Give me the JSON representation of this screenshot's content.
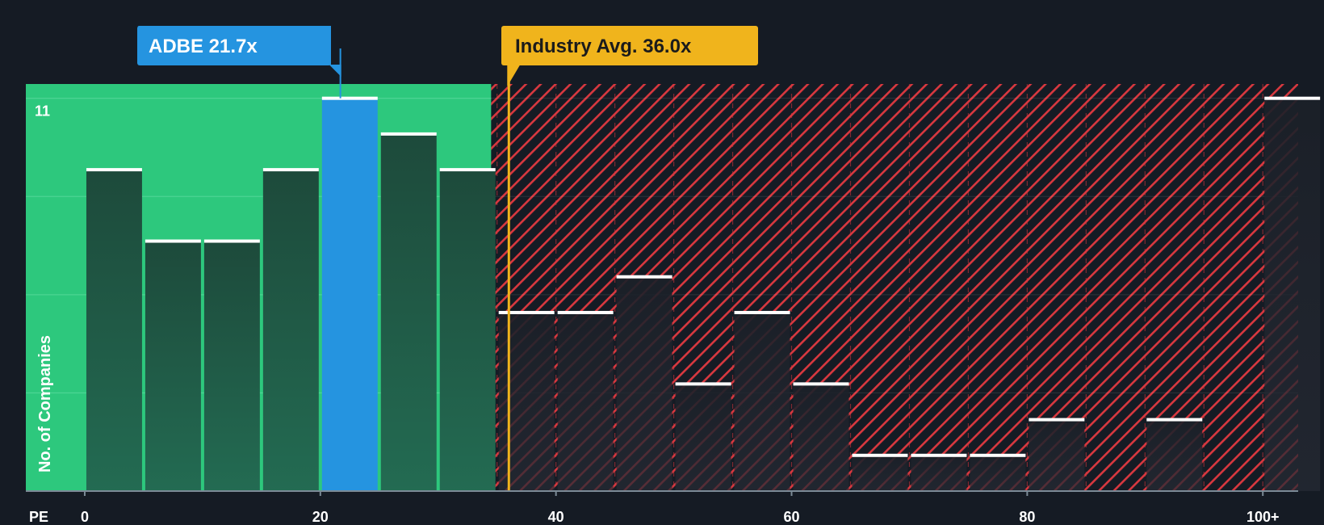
{
  "chart_data": {
    "type": "bar",
    "title": "",
    "xlabel": "PE",
    "ylabel": "No. of Companies",
    "x_axis_label": "PE",
    "xlim": [
      -5,
      103
    ],
    "ylim": [
      0,
      11.4
    ],
    "x_ticks": [
      {
        "value": 0,
        "label": "0"
      },
      {
        "value": 20,
        "label": "20"
      },
      {
        "value": 40,
        "label": "40"
      },
      {
        "value": 60,
        "label": "60"
      },
      {
        "value": 80,
        "label": "80"
      },
      {
        "value": 100,
        "label": "100+"
      }
    ],
    "y_tick_label": {
      "value": 11,
      "label": "11"
    },
    "y_gridlines": [
      2.75,
      5.5,
      8.25,
      11
    ],
    "bin_width": 5,
    "bins": [
      {
        "start": 0,
        "value": 9
      },
      {
        "start": 5,
        "value": 7
      },
      {
        "start": 10,
        "value": 7
      },
      {
        "start": 15,
        "value": 9
      },
      {
        "start": 20,
        "value": 11,
        "highlight": true
      },
      {
        "start": 25,
        "value": 10
      },
      {
        "start": 30,
        "value": 9
      },
      {
        "start": 35,
        "value": 5
      },
      {
        "start": 40,
        "value": 5
      },
      {
        "start": 45,
        "value": 6
      },
      {
        "start": 50,
        "value": 3
      },
      {
        "start": 55,
        "value": 5
      },
      {
        "start": 60,
        "value": 3
      },
      {
        "start": 65,
        "value": 1
      },
      {
        "start": 70,
        "value": 1
      },
      {
        "start": 75,
        "value": 1
      },
      {
        "start": 80,
        "value": 2
      },
      {
        "start": 85,
        "value": 0
      },
      {
        "start": 90,
        "value": 2
      },
      {
        "start": 95,
        "value": 0
      },
      {
        "start": 100,
        "value": 11
      }
    ],
    "fair_zone_end": 34.5,
    "company": {
      "name": "ADBE",
      "value": 21.7,
      "label": "ADBE 21.7x"
    },
    "industry": {
      "name": "Industry Avg.",
      "value": 36.0,
      "label": "Industry Avg. 36.0x"
    },
    "colors": {
      "background": "#151b24",
      "green_zone": "#2dc87d",
      "green_bar": "#1f5a45",
      "company": "#2594e0",
      "red_hatch": "#d8383f",
      "industry": "#f0b41c",
      "bar_cap": "#ffffff",
      "grid": "#5fdca0"
    }
  }
}
